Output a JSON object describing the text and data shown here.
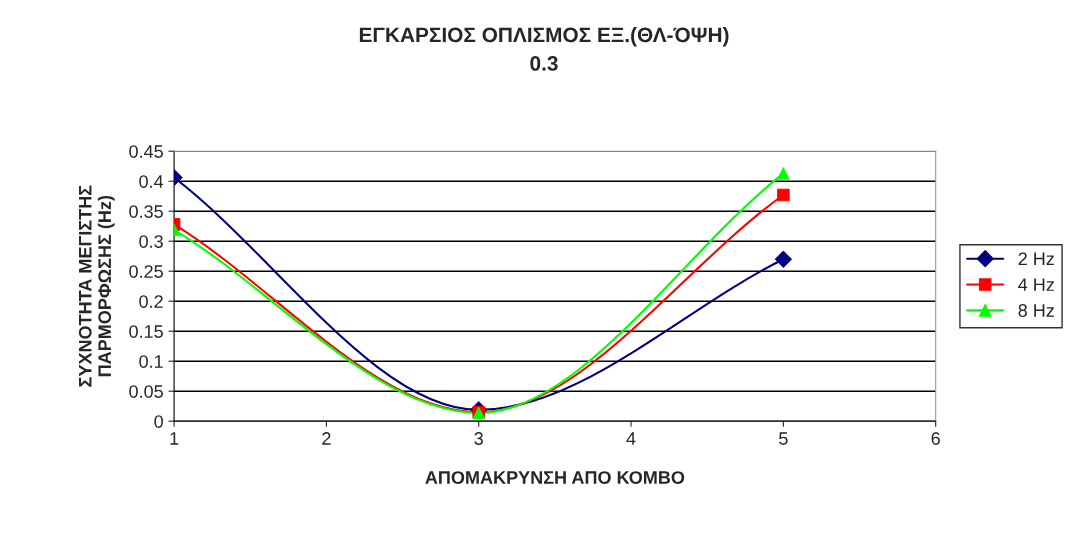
{
  "chart_data": {
    "type": "line",
    "title": "ΕΓΚΑΡΣΙΟΣ ΟΠΛΙΣΜΟΣ ΕΞ.(ΘΛ-ΌΨΗ)",
    "subtitle": "0.3",
    "xlabel": "ΑΠΟΜΑΚΡΥΝΣΗ ΑΠΟ ΚΟΜΒΟ",
    "ylabel": "ΣΥΧΝΟΤΗΤΑ ΜΕΓΙΣΤΗΣ\nΠΑΡΜΟΡΦΩΣΗΣ (Hz)",
    "x": [
      1,
      3,
      5
    ],
    "series": [
      {
        "name": "2 Hz",
        "color": "#000080",
        "marker": "diamond",
        "values": [
          0.406,
          0.019,
          0.27
        ]
      },
      {
        "name": "4 Hz",
        "color": "#ff0000",
        "marker": "square",
        "values": [
          0.328,
          0.015,
          0.377
        ]
      },
      {
        "name": "8 Hz",
        "color": "#00ff00",
        "marker": "triangle",
        "values": [
          0.319,
          0.014,
          0.413
        ]
      }
    ],
    "xlim": [
      1,
      6
    ],
    "xticks": [
      1,
      2,
      3,
      4,
      5,
      6
    ],
    "ylim": [
      0,
      0.45
    ],
    "yticks": [
      0,
      0.05,
      0.1,
      0.15,
      0.2,
      0.25,
      0.3,
      0.35,
      0.4,
      0.45
    ],
    "grid": "y",
    "legend": "right",
    "line_style": "solid"
  }
}
